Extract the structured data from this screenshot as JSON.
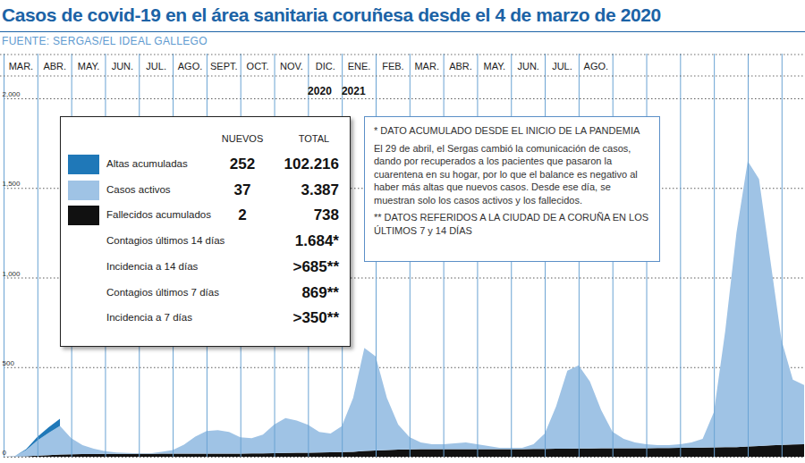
{
  "chart_data": {
    "type": "area",
    "title": "Casos de covid-19 en el área sanitaria coruñesa desde el 4 de marzo de 2020",
    "subtitle": "FUENTE: SERGAS/EL IDEAL GALLEGO",
    "categories": [
      "MAR.",
      null,
      null,
      "ABR.",
      null,
      null,
      "MAY.",
      null,
      null,
      "JUN.",
      null,
      null,
      "JUL.",
      null,
      null,
      "AGO.",
      null,
      null,
      "SEPT.",
      null,
      null,
      "OCT.",
      null,
      null,
      "NOV.",
      null,
      null,
      "DIC.",
      null,
      null,
      "ENE.",
      null,
      null,
      "FEB.",
      null,
      null,
      "MAR.",
      null,
      null,
      "ABR.",
      null,
      null,
      "MAY.",
      null,
      null,
      "JUN.",
      null,
      null,
      "JUL.",
      null,
      null,
      "AGO.",
      null,
      null,
      null,
      null,
      null,
      null,
      null,
      null,
      null,
      null,
      null,
      null,
      null,
      null,
      null,
      null,
      null,
      null,
      null,
      null
    ],
    "series": [
      {
        "name": "Fallecidos acumulados",
        "color": "#111111",
        "values": [
          0,
          1,
          3,
          6,
          9,
          12,
          14,
          15,
          15,
          16,
          16,
          16,
          16,
          16,
          17,
          17,
          17,
          17,
          18,
          18,
          18,
          18,
          19,
          19,
          20,
          21,
          22,
          23,
          24,
          25,
          26,
          28,
          32,
          35,
          38,
          40,
          41,
          42,
          42,
          42,
          42,
          43,
          43,
          43,
          43,
          43,
          43,
          44,
          44,
          45,
          45,
          46,
          46,
          47,
          47,
          48,
          48,
          48,
          49,
          49,
          50,
          50,
          51,
          52,
          53,
          54,
          57,
          60,
          63,
          66,
          68,
          70
        ]
      },
      {
        "name": "Casos activos",
        "color": "#9fc3e5",
        "values": [
          0,
          3,
          35,
          85,
          125,
          160,
          90,
          50,
          30,
          15,
          8,
          5,
          3,
          3,
          10,
          20,
          50,
          95,
          125,
          130,
          120,
          90,
          85,
          105,
          160,
          195,
          180,
          155,
          115,
          105,
          145,
          300,
          575,
          525,
          290,
          140,
          69,
          38,
          28,
          28,
          33,
          37,
          27,
          17,
          7,
          7,
          7,
          26,
          86,
          235,
          435,
          464,
          374,
          213,
          93,
          52,
          32,
          22,
          16,
          16,
          20,
          30,
          49,
          198,
          647,
          1196,
          1593,
          1490,
          1037,
          584,
          362,
          330
        ]
      },
      {
        "name": "Altas acumuladas",
        "color": "#1f78b8",
        "values": [
          0,
          0,
          5,
          20,
          30,
          40,
          null,
          null,
          null,
          null,
          null,
          null,
          null,
          null,
          null,
          null,
          null,
          null,
          null,
          null,
          null,
          null,
          null,
          null,
          null,
          null,
          null,
          null,
          null,
          null,
          null,
          null,
          null,
          null,
          null,
          null,
          null,
          null,
          null,
          null,
          null,
          null,
          null,
          null,
          null,
          null,
          null,
          null,
          null,
          null,
          null,
          null,
          null,
          null,
          null,
          null,
          null,
          null,
          null,
          null,
          null,
          null,
          null,
          null,
          null,
          null,
          null,
          null,
          null,
          null,
          null,
          null
        ]
      }
    ],
    "stacked": true,
    "ylim": [
      0,
      2000
    ],
    "yticks": [
      0,
      500,
      1000,
      1500,
      2000
    ],
    "grid": true,
    "annotations": [
      {
        "text": "2020",
        "category": "DIC."
      },
      {
        "text": "2021",
        "category": "ENE."
      }
    ]
  },
  "summary_box": {
    "columns": [
      "NUEVOS",
      "TOTAL"
    ],
    "rows": [
      {
        "series": "Altas acumuladas",
        "nuevos": "252",
        "total": "102.216"
      },
      {
        "series": "Casos activos",
        "nuevos": "37",
        "total": "3.387"
      },
      {
        "series": "Fallecidos acumulados",
        "nuevos": "2",
        "total": "738"
      },
      {
        "label": "Contagios últimos 14 días",
        "total": "1.684*"
      },
      {
        "label": "Incidencia a 14 días",
        "total": ">685**"
      },
      {
        "label": "Contagios últimos 7 días",
        "total": "869**"
      },
      {
        "label": "Incidencia a 7 días",
        "total": ">350**"
      }
    ]
  },
  "note_box": {
    "paragraphs": [
      "* DATO ACUMULADO DESDE EL INICIO DE LA PANDEMIA",
      "El 29 de abril, el Sergas cambió la comunicación de casos, dando por recuperados a los pacientes que pasaron la cuarentena en su hogar, por lo que el balance es negativo al haber más altas que nuevos casos. Desde ese día, se muestran solo los casos activos y los fallecidos.",
      "** DATOS REFERIDOS A LA CIUDAD DE A CORUÑA EN LOS ÚLTIMOS 7 y 14 DÍAS"
    ]
  }
}
